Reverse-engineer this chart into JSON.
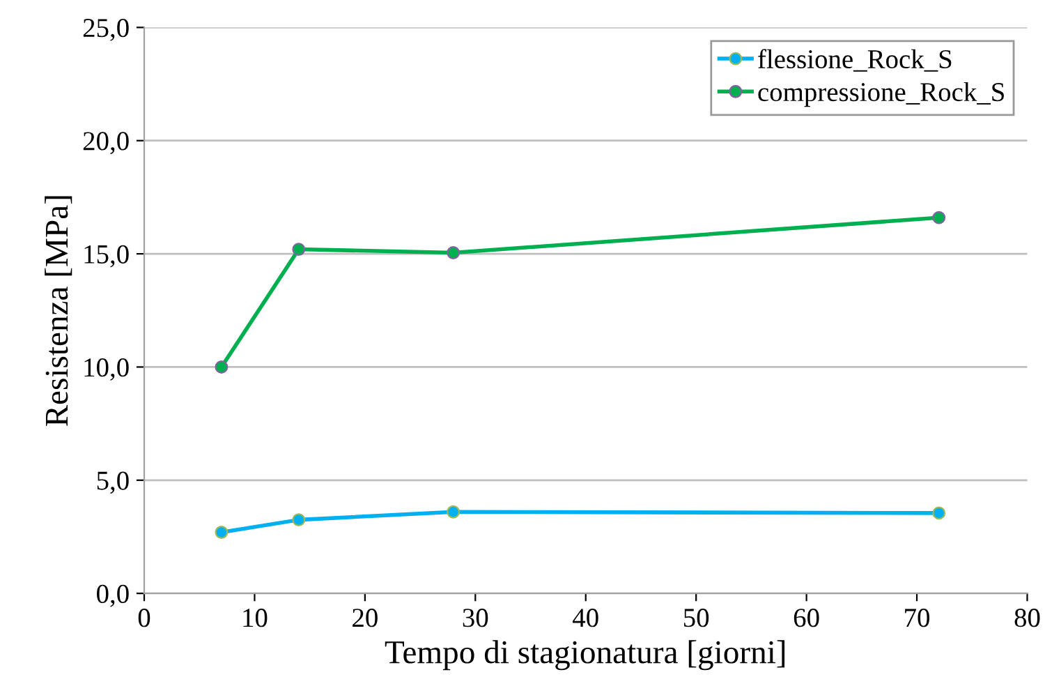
{
  "chart_data": {
    "type": "line",
    "xlabel": "Tempo di stagionatura [giorni]",
    "ylabel": "Resistenza [MPa]",
    "x": [
      7,
      14,
      28,
      72
    ],
    "series": [
      {
        "name": "flessione_Rock_S",
        "color": "#00b0f0",
        "values": [
          2.7,
          3.25,
          3.6,
          3.55
        ]
      },
      {
        "name": "compressione_Rock_S",
        "color": "#00b050",
        "values": [
          10.0,
          15.2,
          15.05,
          16.6
        ]
      }
    ],
    "xlim": [
      0,
      80
    ],
    "xticks": [
      0,
      10,
      20,
      30,
      40,
      50,
      60,
      70,
      80
    ],
    "ylim": [
      0,
      25
    ],
    "yticks": [
      {
        "value": 0,
        "label": "0,0"
      },
      {
        "value": 5,
        "label": "5,0"
      },
      {
        "value": 10,
        "label": "10,0"
      },
      {
        "value": 15,
        "label": "15,0"
      },
      {
        "value": 20,
        "label": "20,0"
      },
      {
        "value": 25,
        "label": "25,0"
      }
    ],
    "grid": "y",
    "legend": "top right",
    "marker": "circle",
    "line_style": "solid"
  }
}
